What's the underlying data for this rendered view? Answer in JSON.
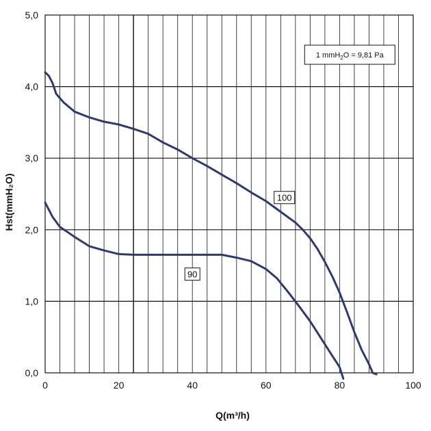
{
  "chart_data": {
    "type": "line",
    "xlabel": "Q(m³/h)",
    "ylabel": "Hst(mmH₂O)",
    "xlim": [
      0,
      100
    ],
    "ylim": [
      0,
      5
    ],
    "xticks": [
      0,
      20,
      40,
      60,
      80,
      100
    ],
    "xtick_labels": [
      "0",
      "20",
      "40",
      "60",
      "80",
      "100"
    ],
    "yticks": [
      0,
      1,
      2,
      3,
      4,
      5
    ],
    "ytick_labels": [
      "0,0",
      "1,0",
      "2,0",
      "3,0",
      "4,0",
      "5,0"
    ],
    "minor_x_step": 4,
    "grid": true,
    "note": {
      "prefix": "1 mmH",
      "sub": "2",
      "suffix": "O = 9,81 Pa"
    },
    "series": [
      {
        "name": "100",
        "color": "#2e3a6e",
        "x": [
          0,
          1,
          2,
          3,
          5,
          8,
          12,
          16,
          20,
          24,
          28,
          32,
          36,
          40,
          44,
          48,
          52,
          56,
          60,
          64,
          68,
          70,
          72,
          74,
          76,
          78,
          80,
          82,
          84,
          86,
          88,
          89,
          90
        ],
        "y": [
          4.2,
          4.15,
          4.05,
          3.9,
          3.78,
          3.65,
          3.57,
          3.51,
          3.47,
          3.41,
          3.34,
          3.22,
          3.12,
          3.0,
          2.89,
          2.77,
          2.65,
          2.52,
          2.4,
          2.25,
          2.1,
          2.0,
          1.88,
          1.73,
          1.55,
          1.35,
          1.12,
          0.85,
          0.57,
          0.32,
          0.12,
          0.0,
          -0.02
        ]
      },
      {
        "name": "90",
        "color": "#2e3a6e",
        "x": [
          0,
          1,
          2,
          4,
          6,
          8,
          12,
          16,
          20,
          24,
          28,
          32,
          36,
          40,
          44,
          48,
          52,
          56,
          60,
          63,
          66,
          69,
          72,
          75,
          78,
          80,
          81
        ],
        "y": [
          2.38,
          2.28,
          2.18,
          2.04,
          1.97,
          1.9,
          1.77,
          1.71,
          1.66,
          1.65,
          1.65,
          1.65,
          1.65,
          1.65,
          1.65,
          1.65,
          1.61,
          1.56,
          1.45,
          1.32,
          1.13,
          0.93,
          0.72,
          0.48,
          0.24,
          0.08,
          -0.08
        ]
      }
    ]
  }
}
